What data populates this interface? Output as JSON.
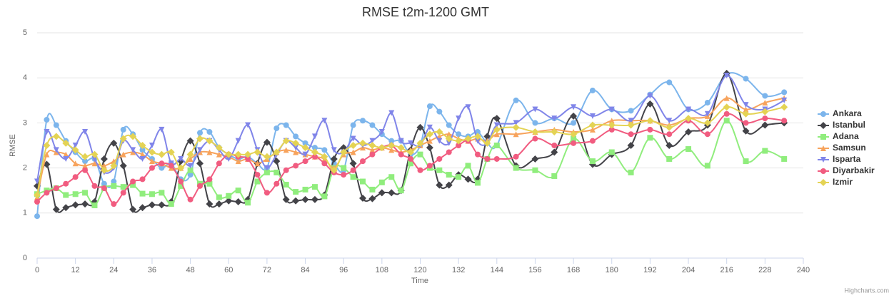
{
  "chart_data": {
    "type": "line",
    "title": "RMSE t2m-1200 GMT",
    "x_label": "Time",
    "y_label": "RMSE",
    "credits": "Highcharts.com",
    "x": [
      0,
      3,
      6,
      9,
      12,
      15,
      18,
      21,
      24,
      27,
      30,
      33,
      36,
      39,
      42,
      45,
      48,
      51,
      54,
      57,
      60,
      63,
      66,
      69,
      72,
      75,
      78,
      81,
      84,
      87,
      90,
      93,
      96,
      99,
      102,
      105,
      108,
      111,
      114,
      117,
      120,
      123,
      126,
      129,
      132,
      135,
      138,
      141,
      144,
      150,
      156,
      162,
      168,
      174,
      180,
      186,
      192,
      198,
      204,
      210,
      216,
      222,
      228,
      234
    ],
    "xlim": [
      0,
      240
    ],
    "xticks": [
      0,
      12,
      24,
      36,
      48,
      60,
      72,
      84,
      96,
      108,
      120,
      132,
      144,
      156,
      168,
      180,
      192,
      204,
      216,
      228,
      240
    ],
    "ylim": [
      0,
      5
    ],
    "yticks": [
      0,
      1,
      2,
      3,
      4,
      5
    ],
    "grid": true,
    "legend": "right",
    "series": [
      {
        "name": "Ankara",
        "color": "#7cb5ec",
        "marker": "circle",
        "values": [
          0.93,
          3.07,
          2.95,
          2.6,
          2.35,
          2.15,
          2.2,
          1.65,
          1.7,
          2.85,
          2.75,
          2.4,
          2.2,
          2.0,
          2.1,
          1.75,
          1.85,
          2.78,
          2.8,
          2.45,
          2.3,
          2.2,
          2.25,
          2.1,
          2.0,
          2.88,
          2.95,
          2.7,
          2.55,
          2.45,
          2.4,
          2.1,
          1.95,
          2.95,
          3.05,
          2.95,
          2.75,
          2.6,
          2.6,
          2.3,
          2.5,
          3.37,
          3.25,
          2.95,
          2.75,
          2.7,
          2.8,
          2.55,
          2.5,
          3.5,
          3.0,
          3.1,
          3.0,
          3.72,
          3.3,
          3.27,
          3.63,
          3.9,
          3.3,
          3.45,
          4.08,
          3.98,
          3.6,
          3.68
        ]
      },
      {
        "name": "Istanbul",
        "color": "#434348",
        "marker": "diamond",
        "values": [
          1.6,
          2.08,
          1.08,
          1.12,
          1.18,
          1.2,
          1.25,
          2.2,
          2.55,
          2.05,
          1.08,
          1.12,
          1.18,
          1.18,
          1.25,
          2.15,
          2.6,
          2.1,
          1.2,
          1.2,
          1.27,
          1.25,
          1.3,
          2.1,
          2.57,
          2.15,
          1.3,
          1.27,
          1.3,
          1.3,
          1.4,
          2.2,
          2.45,
          2.1,
          1.33,
          1.32,
          1.45,
          1.45,
          1.5,
          2.4,
          2.9,
          2.45,
          1.62,
          1.62,
          1.85,
          1.75,
          1.75,
          2.7,
          3.1,
          2.05,
          2.2,
          2.35,
          3.15,
          2.08,
          2.3,
          2.5,
          3.42,
          2.5,
          2.8,
          2.95,
          4.1,
          2.82,
          2.95,
          3.0
        ]
      },
      {
        "name": "Adana",
        "color": "#90ed7d",
        "marker": "square",
        "values": [
          1.42,
          1.5,
          1.55,
          1.4,
          1.42,
          1.45,
          1.17,
          1.55,
          1.6,
          1.58,
          1.62,
          1.43,
          1.42,
          1.45,
          1.2,
          1.6,
          1.95,
          1.65,
          1.65,
          1.35,
          1.38,
          1.5,
          1.23,
          1.7,
          1.9,
          1.9,
          1.63,
          1.47,
          1.52,
          1.58,
          1.37,
          2.0,
          2.0,
          1.8,
          1.7,
          1.52,
          1.68,
          1.8,
          1.5,
          2.1,
          2.3,
          2.0,
          1.95,
          1.85,
          1.8,
          2.05,
          1.67,
          2.2,
          2.5,
          2.0,
          1.95,
          1.82,
          2.65,
          2.15,
          2.35,
          1.9,
          2.67,
          2.2,
          2.42,
          2.05,
          3.05,
          2.15,
          2.38,
          2.2
        ]
      },
      {
        "name": "Samsun",
        "color": "#f7a35c",
        "marker": "triangle",
        "values": [
          1.35,
          2.3,
          2.35,
          2.3,
          2.1,
          2.05,
          2.1,
          2.05,
          2.15,
          2.3,
          2.35,
          2.3,
          2.15,
          2.1,
          2.0,
          2.0,
          2.2,
          2.35,
          2.35,
          2.3,
          2.25,
          2.15,
          2.2,
          2.1,
          2.2,
          2.35,
          2.4,
          2.35,
          2.3,
          2.25,
          2.2,
          2.0,
          2.3,
          2.35,
          2.45,
          2.4,
          2.45,
          2.4,
          2.35,
          2.4,
          2.5,
          2.6,
          2.7,
          2.75,
          2.65,
          2.6,
          2.65,
          2.6,
          2.75,
          2.75,
          2.8,
          2.85,
          2.8,
          2.85,
          3.05,
          3.05,
          3.05,
          2.95,
          3.1,
          3.15,
          3.55,
          3.3,
          3.45,
          3.55
        ]
      },
      {
        "name": "Isparta",
        "color": "#8085e9",
        "marker": "triangle-down",
        "values": [
          1.7,
          2.8,
          2.4,
          2.2,
          2.5,
          2.8,
          2.2,
          1.9,
          2.0,
          2.6,
          2.4,
          2.2,
          2.5,
          2.85,
          2.1,
          2.2,
          2.05,
          2.4,
          2.6,
          2.4,
          2.2,
          2.6,
          2.95,
          2.4,
          2.0,
          2.3,
          2.6,
          2.45,
          2.3,
          2.7,
          3.05,
          2.4,
          2.35,
          2.65,
          2.5,
          2.6,
          2.8,
          3.22,
          2.6,
          2.55,
          2.5,
          2.9,
          2.6,
          2.55,
          3.1,
          3.35,
          2.6,
          2.55,
          2.95,
          3.0,
          3.3,
          3.1,
          3.35,
          3.15,
          3.3,
          3.05,
          3.6,
          3.05,
          3.3,
          3.2,
          4.05,
          3.4,
          3.3,
          3.5
        ]
      },
      {
        "name": "Diyarbakir",
        "color": "#f15c80",
        "marker": "circle",
        "values": [
          1.25,
          1.45,
          1.55,
          1.65,
          1.8,
          1.95,
          1.6,
          1.55,
          1.2,
          1.45,
          1.7,
          1.75,
          2.0,
          2.1,
          2.05,
          1.7,
          1.3,
          1.6,
          1.75,
          2.1,
          2.3,
          2.25,
          2.2,
          1.85,
          1.45,
          1.65,
          1.95,
          2.05,
          2.15,
          2.25,
          2.1,
          1.9,
          1.85,
          1.95,
          2.15,
          2.3,
          2.45,
          2.5,
          2.3,
          2.2,
          1.95,
          2.05,
          2.2,
          2.35,
          2.5,
          2.6,
          2.3,
          2.2,
          2.2,
          2.25,
          2.65,
          2.5,
          2.55,
          2.6,
          2.85,
          2.75,
          2.85,
          2.75,
          3.05,
          2.75,
          3.2,
          3.0,
          3.1,
          3.05
        ]
      },
      {
        "name": "Izmir",
        "color": "#e4d354",
        "marker": "diamond",
        "values": [
          1.4,
          2.5,
          2.7,
          2.55,
          2.4,
          2.25,
          2.3,
          1.95,
          2.05,
          2.65,
          2.7,
          2.5,
          2.35,
          2.3,
          2.35,
          2.0,
          2.3,
          2.65,
          2.6,
          2.45,
          2.3,
          2.3,
          2.3,
          2.35,
          2.25,
          2.35,
          2.6,
          2.55,
          2.45,
          2.35,
          2.25,
          1.95,
          2.35,
          2.5,
          2.55,
          2.5,
          2.45,
          2.5,
          2.45,
          2.35,
          2.55,
          2.75,
          2.8,
          2.65,
          2.6,
          2.65,
          2.7,
          2.55,
          2.85,
          2.9,
          2.8,
          2.8,
          2.75,
          2.95,
          2.95,
          2.95,
          3.05,
          2.9,
          3.1,
          3.0,
          3.35,
          3.2,
          3.25,
          3.35
        ]
      }
    ]
  }
}
